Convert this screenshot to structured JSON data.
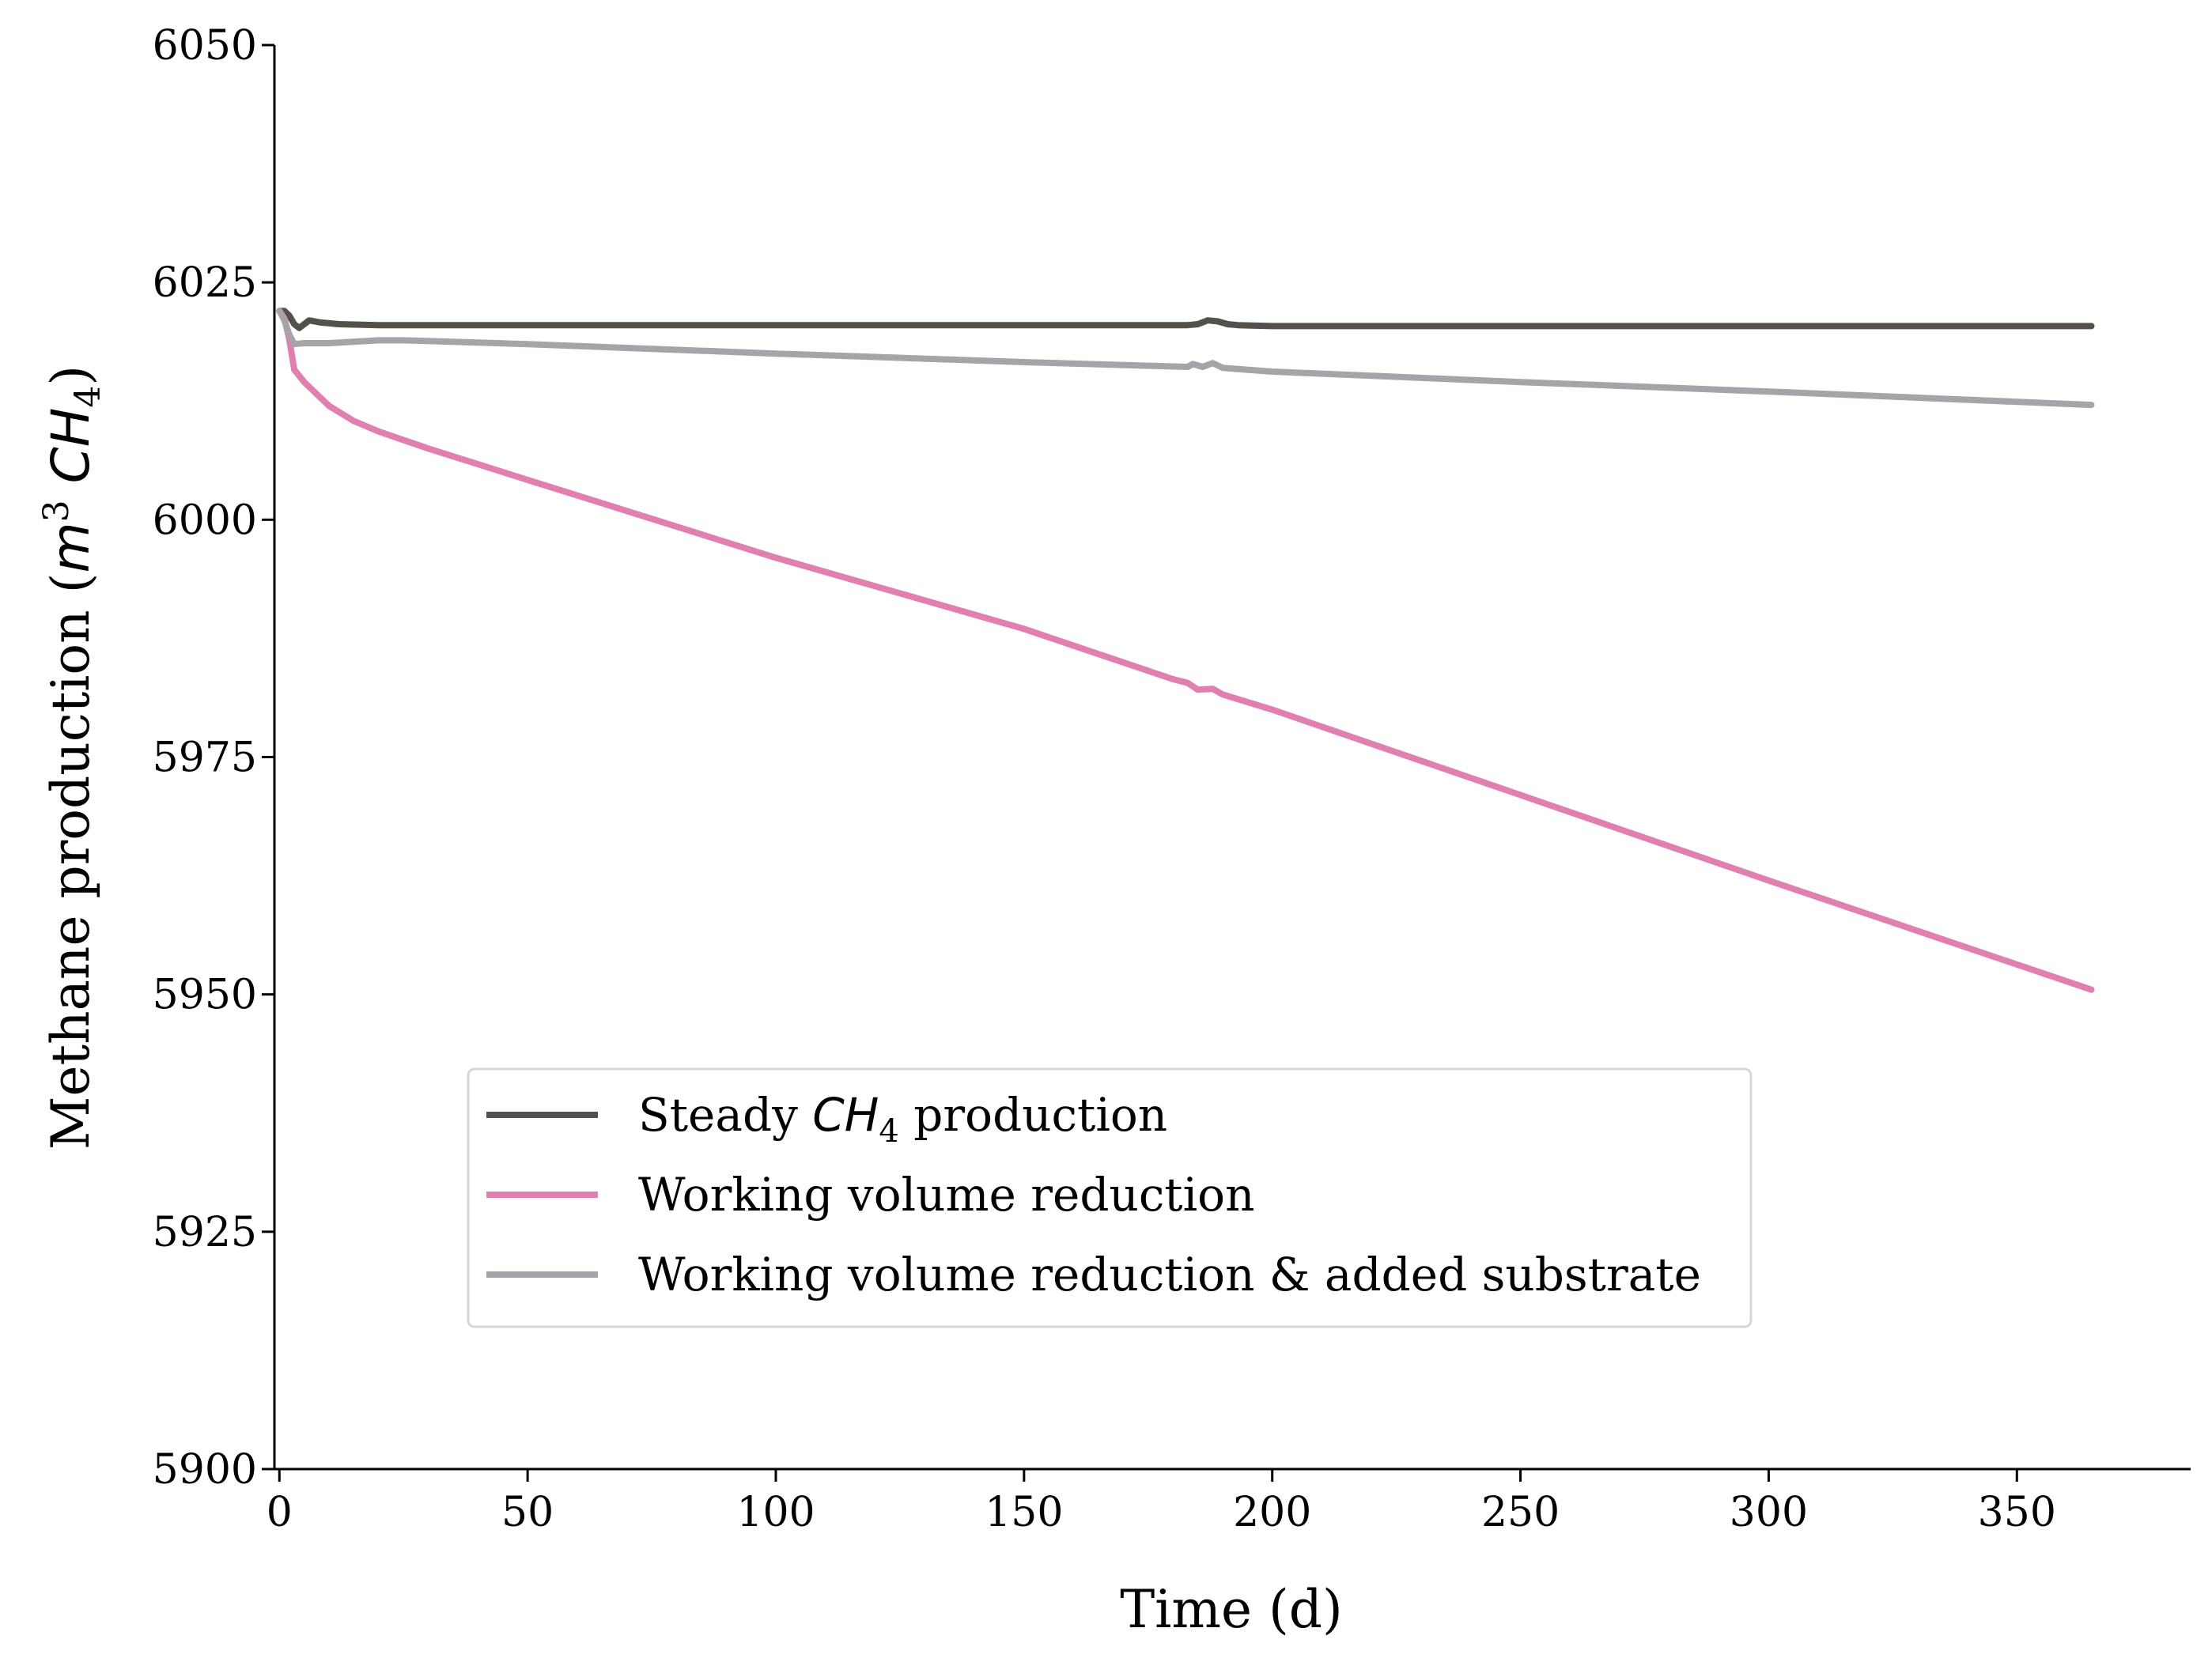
{
  "chart_data": {
    "type": "line",
    "title": "",
    "xlabel": "Time (d)",
    "ylabel": {
      "prefix": "Methane production (",
      "unit_m": "m",
      "unit_exp": "3",
      "unit_ch": "CH",
      "unit_sub": "4",
      "suffix": ")"
    },
    "xlim": [
      -1,
      385
    ],
    "ylim": [
      5900,
      6050
    ],
    "xticks": [
      0,
      50,
      100,
      150,
      200,
      250,
      300,
      350
    ],
    "yticks": [
      5900,
      5925,
      5950,
      5975,
      6000,
      6025,
      6050
    ],
    "grid": false,
    "legend_position": "lower-center-left",
    "series": [
      {
        "name": "Steady CH4 production",
        "label_parts": {
          "pre": "Steady ",
          "math": "CH",
          "sub": "4",
          "post": " production"
        },
        "color": "#54504c",
        "x": [
          0,
          1,
          2,
          3,
          4,
          6,
          8,
          12,
          20,
          50,
          100,
          150,
          183,
          185,
          187,
          189,
          191,
          193,
          196,
          200,
          250,
          300,
          365
        ],
        "y": [
          6022.0,
          6022.0,
          6021.5,
          6020.6,
          6020.2,
          6021.0,
          6020.8,
          6020.6,
          6020.5,
          6020.5,
          6020.5,
          6020.5,
          6020.5,
          6020.6,
          6021.0,
          6020.9,
          6020.6,
          6020.5,
          6020.45,
          6020.4,
          6020.4,
          6020.4,
          6020.4
        ]
      },
      {
        "name": "Working volume reduction",
        "label_parts": {
          "pre": "Working volume reduction",
          "math": "",
          "sub": "",
          "post": ""
        },
        "color": "#e07fb0",
        "x": [
          0,
          1,
          2,
          3,
          5,
          7,
          10,
          15,
          20,
          30,
          50,
          100,
          150,
          180,
          183,
          185,
          188,
          190,
          200,
          250,
          300,
          365
        ],
        "y": [
          6022.0,
          6021.2,
          6019.0,
          6015.8,
          6014.5,
          6013.5,
          6012.0,
          6010.4,
          6009.3,
          6007.5,
          6004.2,
          5996.0,
          5988.5,
          5983.2,
          5982.8,
          5982.1,
          5982.2,
          5981.6,
          5980.0,
          5971.0,
          5962.0,
          5950.5
        ]
      },
      {
        "name": "Working volume reduction & added substrate",
        "label_parts": {
          "pre": "Working volume reduction & added substrate",
          "math": "",
          "sub": "",
          "post": ""
        },
        "color": "#a7a4a9",
        "x": [
          0,
          1,
          2,
          3,
          5,
          10,
          20,
          25,
          50,
          100,
          150,
          183,
          184,
          186,
          188,
          190,
          195,
          200,
          250,
          300,
          365
        ],
        "y": [
          6022.0,
          6021.0,
          6019.5,
          6018.5,
          6018.6,
          6018.6,
          6018.9,
          6018.9,
          6018.5,
          6017.5,
          6016.6,
          6016.1,
          6016.4,
          6016.1,
          6016.5,
          6016.0,
          6015.8,
          6015.6,
          6014.5,
          6013.5,
          6012.1
        ]
      }
    ]
  }
}
